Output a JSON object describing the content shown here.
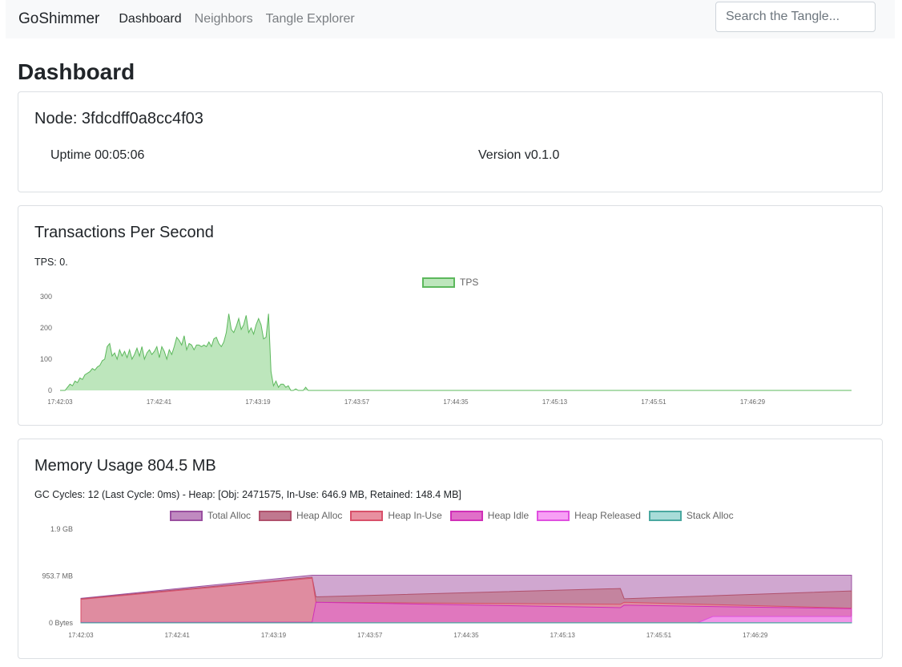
{
  "navbar": {
    "brand": "GoShimmer",
    "links": [
      "Dashboard",
      "Neighbors",
      "Tangle Explorer"
    ],
    "search_placeholder": "Search the Tangle..."
  },
  "page_title": "Dashboard",
  "node_card": {
    "title": "Node: 3fdcdff0a8cc4f03",
    "uptime": "Uptime 00:05:06",
    "version": "Version v0.1.0"
  },
  "tps_card": {
    "title": "Transactions Per Second",
    "status": "TPS: 0."
  },
  "memory_card": {
    "title": "Memory Usage 804.5 MB",
    "status": "GC Cycles: 12 (Last Cycle: 0ms) - Heap: [Obj: 2471575, In-Use: 646.9 MB, Retained: 148.4 MB]"
  },
  "colors": {
    "tps_fill": "#bde6bc",
    "tps_line": "#5cb85c",
    "total_alloc": "#c08ac0",
    "heap_alloc": "#c0788f",
    "heap_inuse": "#e88fa0",
    "heap_idle": "#e070c8",
    "heap_released": "#f7a0f5",
    "stack_alloc": "#a8dcd8"
  },
  "chart_data": [
    {
      "type": "area",
      "title": "",
      "series": [
        {
          "name": "TPS",
          "values": [
            0,
            0,
            0,
            10,
            20,
            15,
            30,
            25,
            40,
            35,
            50,
            55,
            60,
            70,
            65,
            75,
            80,
            95,
            100,
            140,
            150,
            110,
            120,
            100,
            130,
            110,
            125,
            105,
            130,
            100,
            115,
            135,
            110,
            140,
            100,
            120,
            130,
            115,
            125,
            140,
            105,
            140,
            125,
            100,
            130,
            115,
            140,
            170,
            160,
            145,
            175,
            130,
            150,
            145,
            130,
            145,
            145,
            140,
            145,
            140,
            155,
            140,
            165,
            170,
            150,
            140,
            155,
            185,
            245,
            195,
            185,
            205,
            230,
            195,
            210,
            240,
            185,
            200,
            180,
            210,
            230,
            210,
            165,
            170,
            245,
            60,
            15,
            30,
            10,
            20,
            20,
            10,
            15,
            0,
            0,
            5,
            0,
            0,
            0,
            10,
            0,
            0,
            0,
            0,
            0,
            0,
            0,
            0,
            0,
            0,
            0,
            0,
            0,
            0,
            0,
            0,
            0,
            0,
            0,
            0,
            0,
            0,
            0,
            0,
            0,
            0,
            0,
            0,
            0,
            0,
            0,
            0,
            0,
            0,
            0,
            0,
            0,
            0,
            0,
            0,
            0,
            0,
            0,
            0,
            0,
            0,
            0,
            0,
            0,
            0,
            0,
            0,
            0,
            0,
            0,
            0,
            0,
            0,
            0,
            0,
            0,
            0,
            0,
            0,
            0,
            0,
            0,
            0,
            0,
            0,
            0,
            0,
            0,
            0,
            0,
            0,
            0,
            0,
            0,
            0,
            0,
            0,
            0,
            0,
            0,
            0,
            0,
            0,
            0,
            0,
            0,
            0,
            0,
            0,
            0,
            0,
            0,
            0,
            0,
            0,
            0,
            0,
            0,
            0,
            0,
            0,
            0,
            0,
            0,
            0,
            0,
            0,
            0,
            0,
            0,
            0,
            0,
            0,
            0,
            0,
            0,
            0,
            0,
            0,
            0,
            0,
            0,
            0,
            0,
            0,
            0,
            0,
            0,
            0,
            0,
            0,
            0,
            0,
            0,
            0,
            0,
            0,
            0,
            0,
            0,
            0,
            0,
            0,
            0,
            0,
            0,
            0,
            0,
            0,
            0,
            0,
            0,
            0,
            0,
            0,
            0,
            0,
            0,
            0,
            0,
            0,
            0,
            0,
            0,
            0,
            0,
            0,
            0,
            0,
            0,
            0,
            0,
            0,
            0,
            0,
            0,
            0,
            0,
            0,
            0,
            0,
            0,
            0,
            0,
            0,
            0,
            0,
            0,
            0,
            0,
            0,
            0,
            0,
            0,
            0,
            0,
            0,
            0,
            0,
            0,
            0,
            0,
            0,
            0,
            0,
            0,
            0,
            0,
            0,
            0,
            0,
            0,
            0,
            0,
            0
          ]
        }
      ],
      "x_ticks": [
        "17:42:03",
        "17:42:41",
        "17:43:19",
        "17:43:57",
        "17:44:35",
        "17:45:13",
        "17:45:51",
        "17:46:29"
      ],
      "y_ticks": [
        "0",
        "100",
        "200",
        "300"
      ],
      "ylim": [
        0,
        300
      ],
      "legend": "top-center"
    },
    {
      "type": "area",
      "title": "",
      "x_ticks": [
        "17:42:03",
        "17:42:41",
        "17:43:19",
        "17:43:57",
        "17:44:35",
        "17:45:13",
        "17:45:51",
        "17:46:29"
      ],
      "y_ticks": [
        "0 Bytes",
        "953.7 MB",
        "1.9 GB"
      ],
      "ylim_mb": [
        0,
        1907.4
      ],
      "legend": "top-center",
      "series": [
        {
          "name": "Total Alloc",
          "points": [
            [
              0,
              500
            ],
            [
              0.3,
              970
            ],
            [
              1,
              970
            ]
          ]
        },
        {
          "name": "Heap Alloc",
          "points": [
            [
              0,
              490
            ],
            [
              0.3,
              930
            ],
            [
              0.305,
              530
            ],
            [
              0.7,
              700
            ],
            [
              0.705,
              490
            ],
            [
              1,
              650
            ]
          ]
        },
        {
          "name": "Heap In-Use",
          "points": [
            [
              0,
              480
            ],
            [
              0.3,
              910
            ],
            [
              0.305,
              420
            ],
            [
              0.7,
              380
            ],
            [
              0.705,
              420
            ],
            [
              1,
              300
            ]
          ]
        },
        {
          "name": "Heap Idle",
          "points": [
            [
              0,
              10
            ],
            [
              0.3,
              15
            ],
            [
              0.305,
              420
            ],
            [
              0.7,
              310
            ],
            [
              0.705,
              360
            ],
            [
              1,
              290
            ]
          ]
        },
        {
          "name": "Heap Released",
          "points": [
            [
              0,
              0
            ],
            [
              0.8,
              0
            ],
            [
              0.82,
              130
            ],
            [
              1,
              130
            ]
          ]
        },
        {
          "name": "Stack Alloc",
          "points": [
            [
              0,
              5
            ],
            [
              1,
              5
            ]
          ]
        }
      ]
    }
  ]
}
